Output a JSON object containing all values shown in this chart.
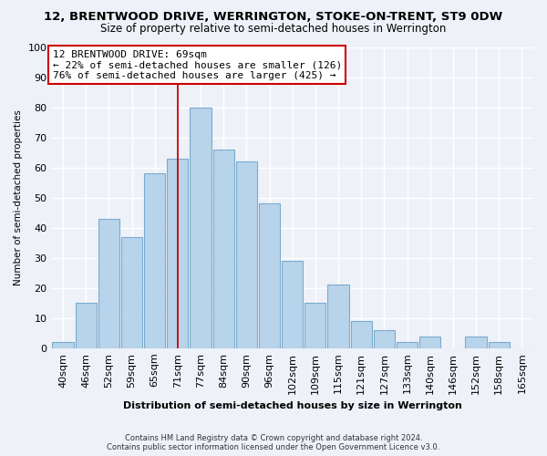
{
  "title": "12, BRENTWOOD DRIVE, WERRINGTON, STOKE-ON-TRENT, ST9 0DW",
  "subtitle": "Size of property relative to semi-detached houses in Werrington",
  "xlabel": "Distribution of semi-detached houses by size in Werrington",
  "ylabel": "Number of semi-detached properties",
  "categories": [
    "40sqm",
    "46sqm",
    "52sqm",
    "59sqm",
    "65sqm",
    "71sqm",
    "77sqm",
    "84sqm",
    "90sqm",
    "96sqm",
    "102sqm",
    "109sqm",
    "115sqm",
    "121sqm",
    "127sqm",
    "133sqm",
    "140sqm",
    "146sqm",
    "152sqm",
    "158sqm",
    "165sqm"
  ],
  "values": [
    2,
    15,
    43,
    37,
    58,
    63,
    80,
    66,
    62,
    48,
    29,
    15,
    21,
    9,
    6,
    2,
    4,
    0,
    4,
    2,
    0
  ],
  "bar_color": "#b8d4ea",
  "bar_edge_color": "#7aabcf",
  "vline_x_idx": 5,
  "vline_color": "#cc0000",
  "annotation_title": "12 BRENTWOOD DRIVE: 69sqm",
  "annotation_line1": "← 22% of semi-detached houses are smaller (126)",
  "annotation_line2": "76% of semi-detached houses are larger (425) →",
  "annotation_box_color": "#ffffff",
  "annotation_box_edge": "#cc0000",
  "ylim": [
    0,
    100
  ],
  "yticks": [
    0,
    10,
    20,
    30,
    40,
    50,
    60,
    70,
    80,
    90,
    100
  ],
  "footer1": "Contains HM Land Registry data © Crown copyright and database right 2024.",
  "footer2": "Contains public sector information licensed under the Open Government Licence v3.0.",
  "bg_color": "#eef2f8",
  "grid_color": "#ffffff",
  "title_fontsize": 9.5,
  "subtitle_fontsize": 8.5
}
